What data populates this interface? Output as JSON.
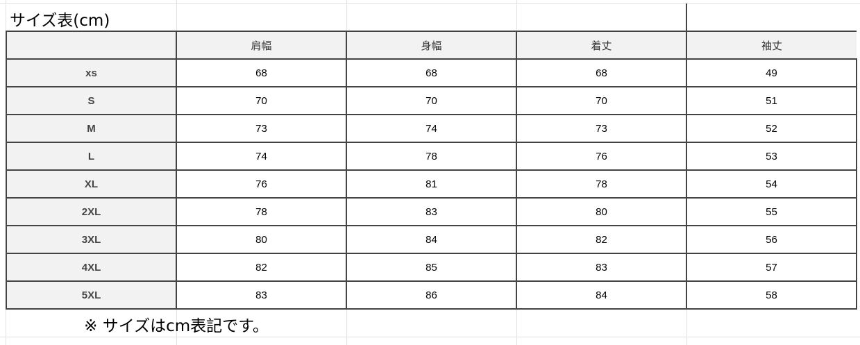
{
  "title": "サイズ表(cm)",
  "headers": [
    "",
    "肩幅",
    "身幅",
    "着丈",
    "袖丈"
  ],
  "rows": [
    {
      "size": "xs",
      "values": [
        "68",
        "68",
        "68",
        "49"
      ]
    },
    {
      "size": "S",
      "values": [
        "70",
        "70",
        "70",
        "51"
      ]
    },
    {
      "size": "M",
      "values": [
        "73",
        "74",
        "73",
        "52"
      ]
    },
    {
      "size": "L",
      "values": [
        "74",
        "78",
        "76",
        "53"
      ]
    },
    {
      "size": "XL",
      "values": [
        "76",
        "81",
        "78",
        "54"
      ]
    },
    {
      "size": "2XL",
      "values": [
        "78",
        "83",
        "80",
        "55"
      ]
    },
    {
      "size": "3XL",
      "values": [
        "80",
        "84",
        "82",
        "56"
      ]
    },
    {
      "size": "4XL",
      "values": [
        "82",
        "85",
        "83",
        "57"
      ]
    },
    {
      "size": "5XL",
      "values": [
        "83",
        "86",
        "84",
        "58"
      ]
    }
  ],
  "note": "※ サイズはcm表記です。"
}
